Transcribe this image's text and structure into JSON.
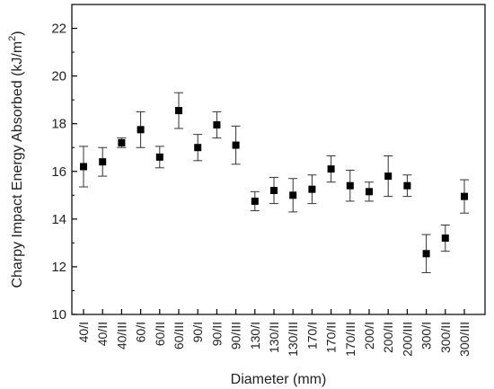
{
  "chart_data": {
    "type": "scatter",
    "xlabel": "Diameter (mm)",
    "ylabel": "Charpy Impact Energy Absorbed (kJ/m",
    "ylabel_superscript": "2",
    "ylabel_suffix": ")",
    "ylim": [
      10,
      23
    ],
    "yticks": [
      "10",
      "12",
      "14",
      "16",
      "18",
      "20",
      "22"
    ],
    "categories": [
      "40/I",
      "40/II",
      "40/III",
      "60/I",
      "60/II",
      "60/III",
      "90/I",
      "90/II",
      "90/III",
      "130/I",
      "130/II",
      "130/III",
      "170/I",
      "170/II",
      "170/III",
      "200/I",
      "200/II",
      "200/III",
      "300/I",
      "300/II",
      "300/III"
    ],
    "values": [
      16.2,
      16.4,
      17.2,
      17.75,
      16.6,
      18.55,
      17.0,
      17.95,
      17.1,
      14.75,
      15.2,
      15.0,
      15.25,
      16.1,
      15.4,
      15.15,
      15.8,
      15.4,
      12.55,
      13.2,
      14.95
    ],
    "error": [
      0.85,
      0.6,
      0.2,
      0.75,
      0.45,
      0.75,
      0.55,
      0.55,
      0.8,
      0.4,
      0.55,
      0.7,
      0.6,
      0.55,
      0.65,
      0.4,
      0.85,
      0.45,
      0.8,
      0.55,
      0.7
    ],
    "grid": false,
    "marker": "square",
    "marker_color": "#000000"
  }
}
